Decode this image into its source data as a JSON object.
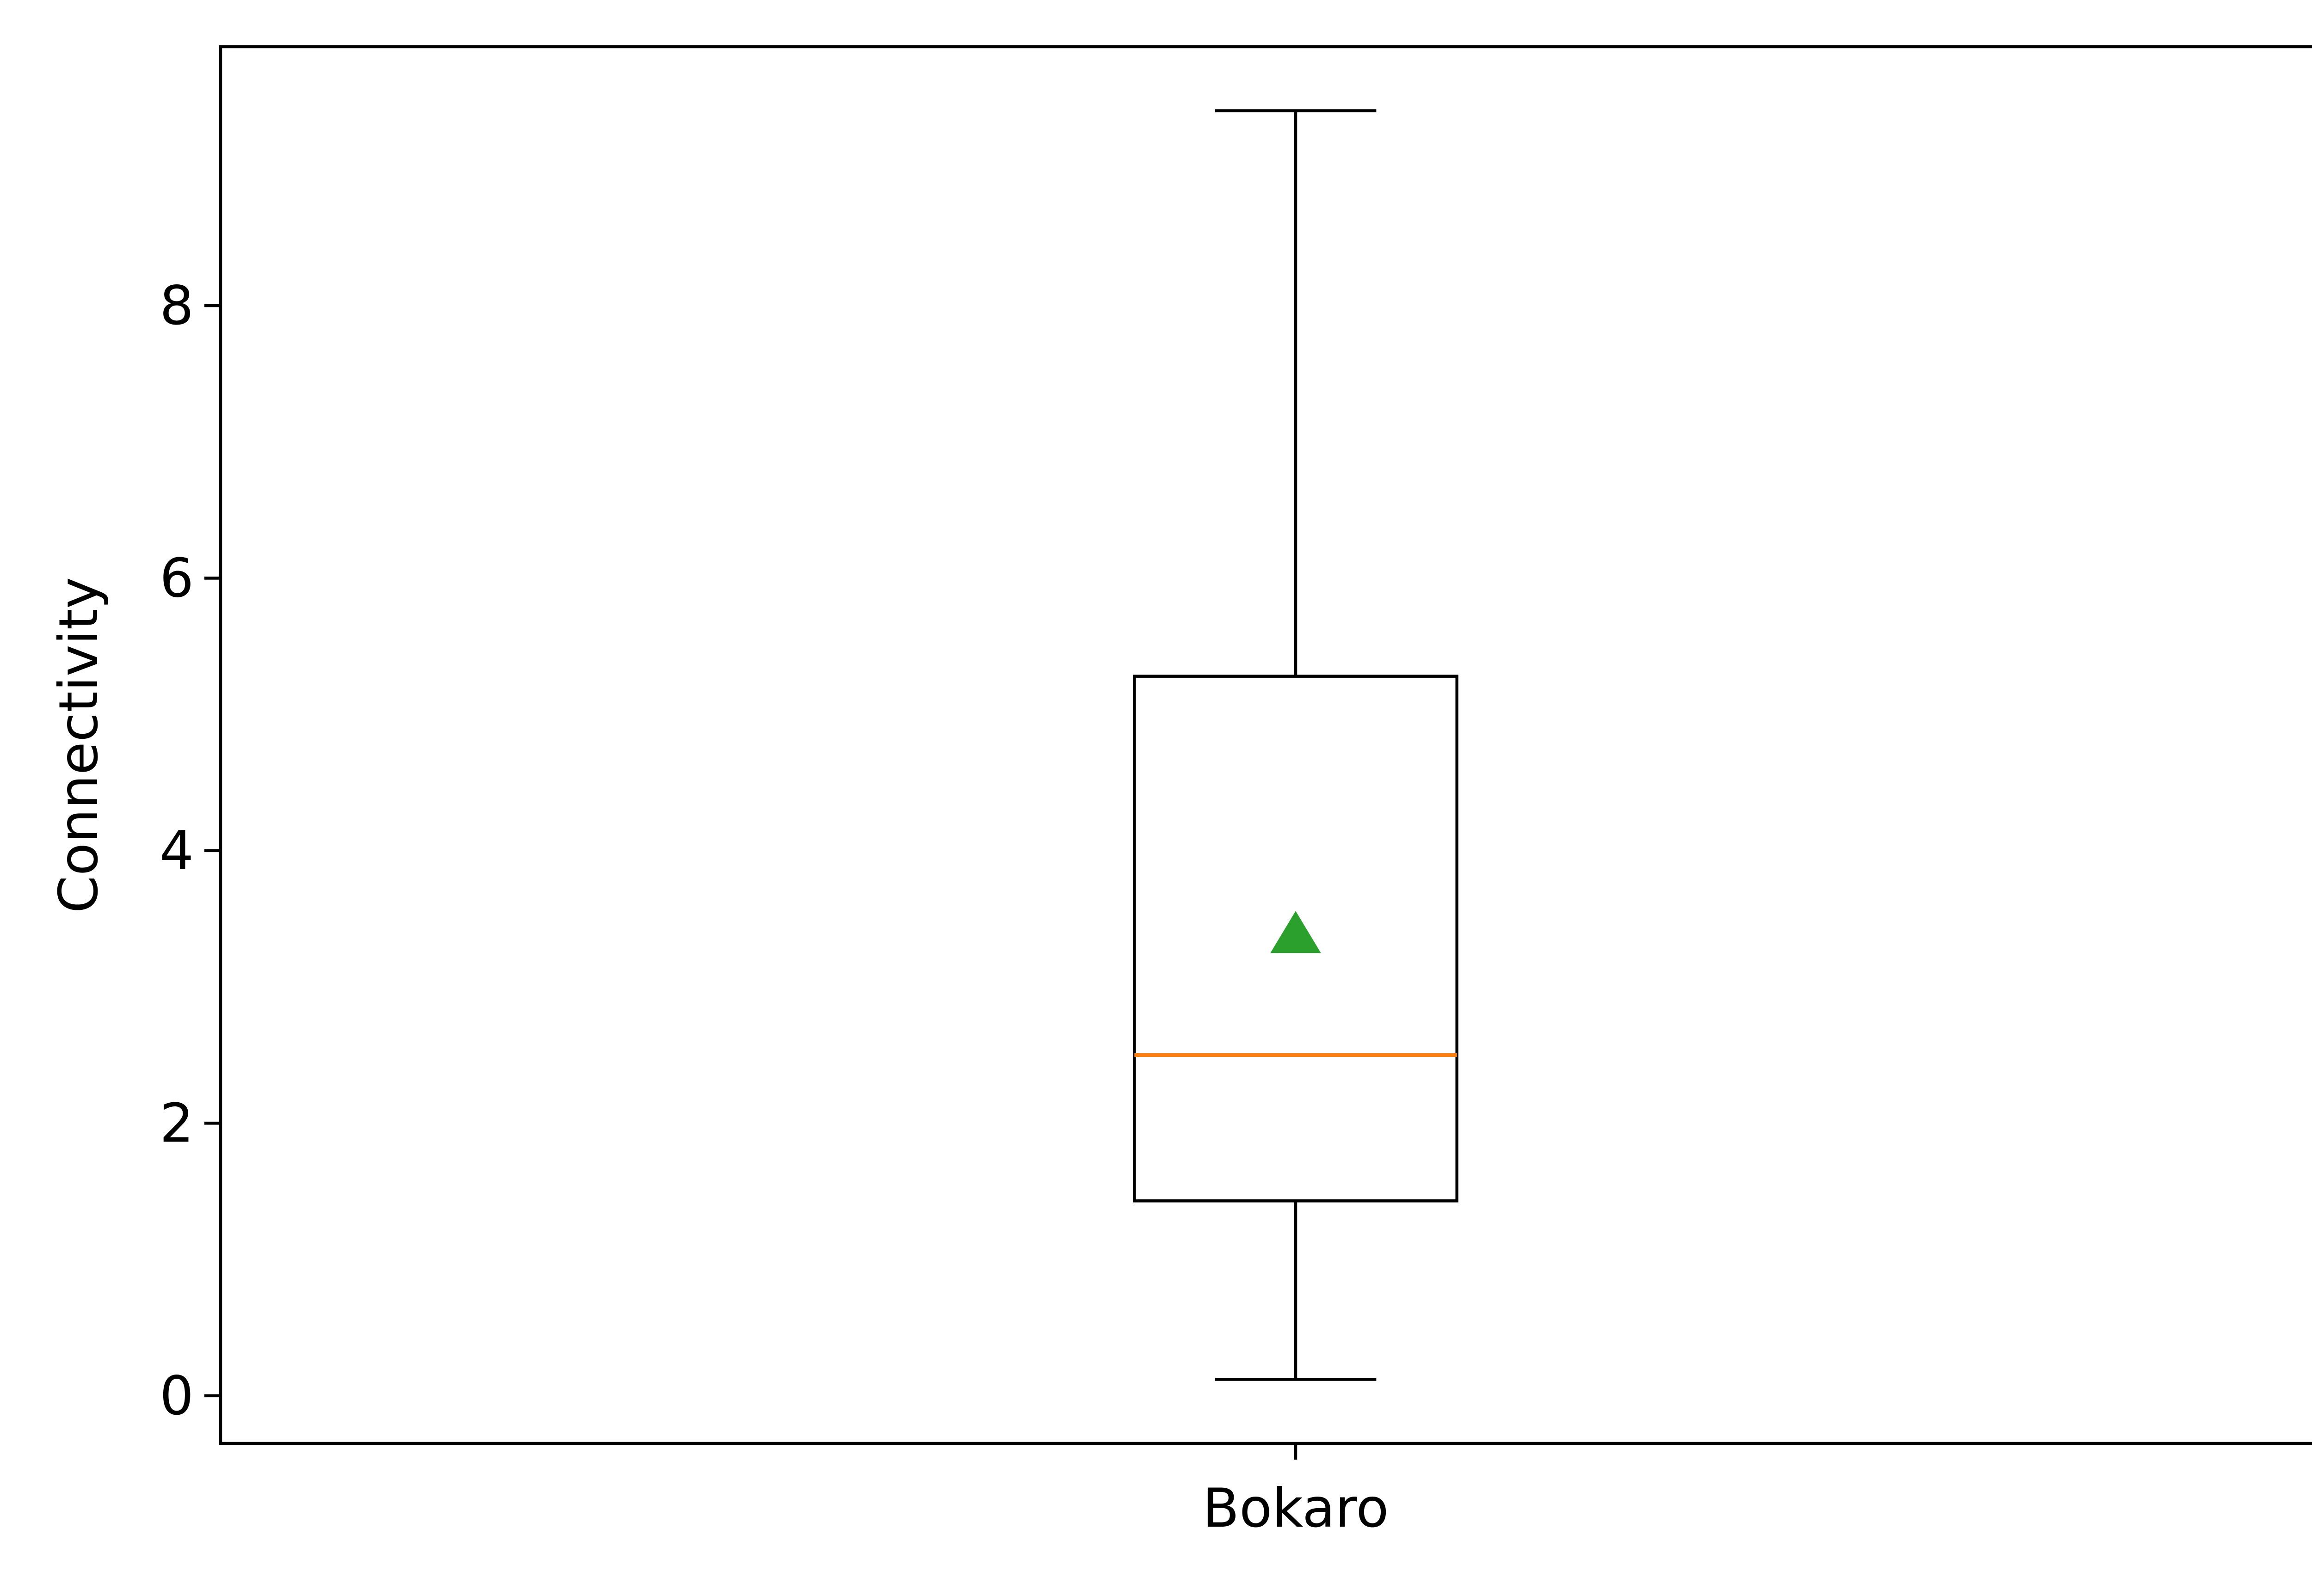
{
  "chart_data": {
    "type": "box",
    "title": "",
    "xlabel": "",
    "ylabel": "Connectivity",
    "ylim": [
      -0.35,
      9.9
    ],
    "yticks": [
      0,
      2,
      4,
      6,
      8
    ],
    "grid": false,
    "categories": [
      "Bokaro"
    ],
    "boxes": [
      {
        "category": "Bokaro",
        "whisker_low": 0.12,
        "q1": 1.43,
        "median": 2.5,
        "q3": 5.28,
        "whisker_high": 9.43,
        "mean": 3.38
      }
    ],
    "colors": {
      "box": "#000000",
      "median": "#ff7f0e",
      "mean": "#2ca02c"
    }
  }
}
